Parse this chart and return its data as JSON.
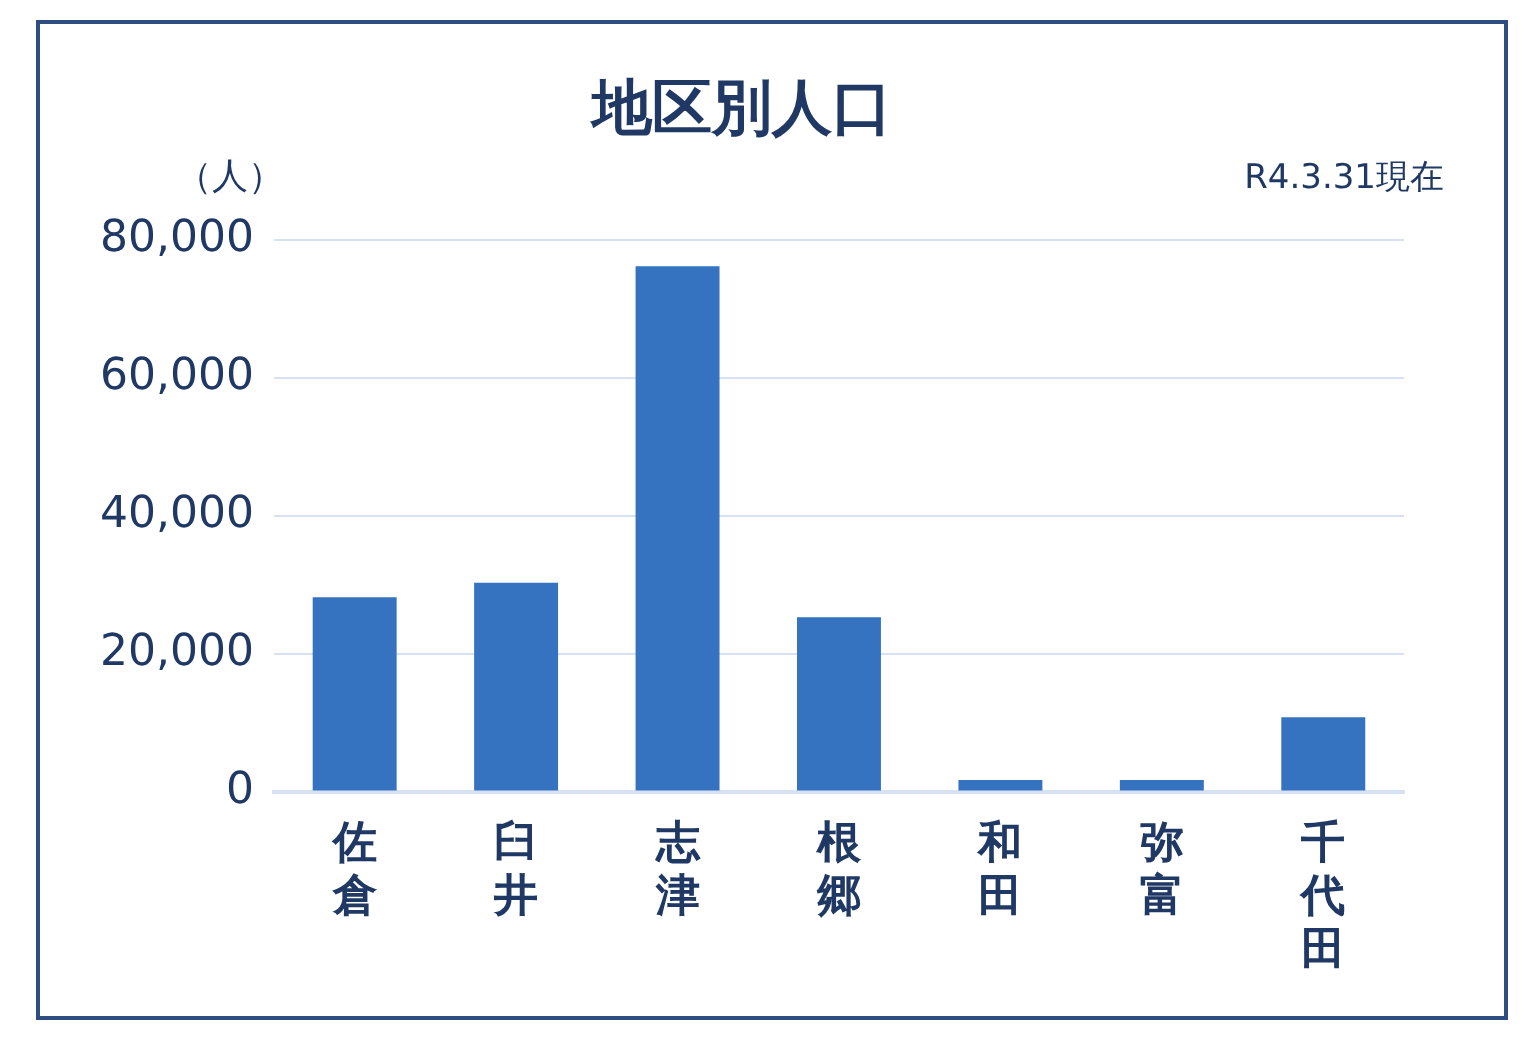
{
  "chart_data": {
    "type": "bar",
    "title": "地区別人口",
    "ylabel": "（人）",
    "annotations": [
      "R4.3.31現在"
    ],
    "categories": [
      "佐倉",
      "臼井",
      "志津",
      "根郷",
      "和田",
      "弥富",
      "千代田"
    ],
    "values": [
      28200,
      30300,
      76200,
      25300,
      1700,
      1700,
      10800
    ],
    "color": "#3572c0",
    "ylim": [
      0,
      80000
    ],
    "yticks": [
      0,
      {
        "value": 20000,
        "label": "20,000"
      },
      {
        "value": 40000,
        "label": "40,000"
      },
      {
        "value": 60000,
        "label": "60,000"
      },
      {
        "value": 80000,
        "label": "80,000"
      }
    ],
    "grid": "y"
  }
}
